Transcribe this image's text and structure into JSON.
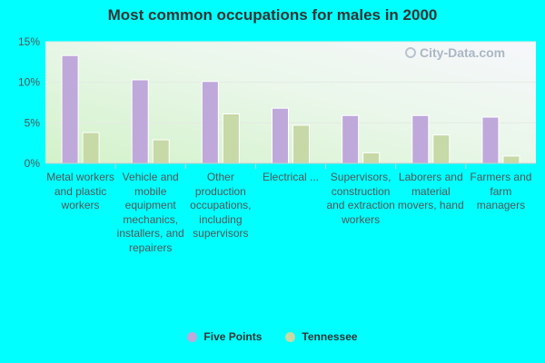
{
  "chart_data": {
    "type": "bar",
    "title": "Most common occupations for males in 2000",
    "categories": [
      "Metal workers and plastic workers",
      "Vehicle and mobile equipment mechanics, installers, and repairers",
      "Other production occupations, including supervisors",
      "Electrical ...",
      "Supervisors, construction and extraction workers",
      "Laborers and material movers, hand",
      "Farmers and farm managers"
    ],
    "series": [
      {
        "name": "Five Points",
        "values": [
          13.3,
          10.3,
          10.1,
          6.8,
          5.9,
          5.9,
          5.7
        ],
        "color": "#bfa8da"
      },
      {
        "name": "Tennessee",
        "values": [
          3.8,
          2.9,
          6.1,
          4.7,
          1.3,
          3.5,
          0.9
        ],
        "color": "#c6d9a6"
      }
    ],
    "yticks": [
      "0%",
      "5%",
      "10%",
      "15%"
    ],
    "ylim": [
      0,
      15
    ],
    "grid": true,
    "legend_position": "bottom"
  },
  "watermark": {
    "text": "City-Data.com"
  }
}
